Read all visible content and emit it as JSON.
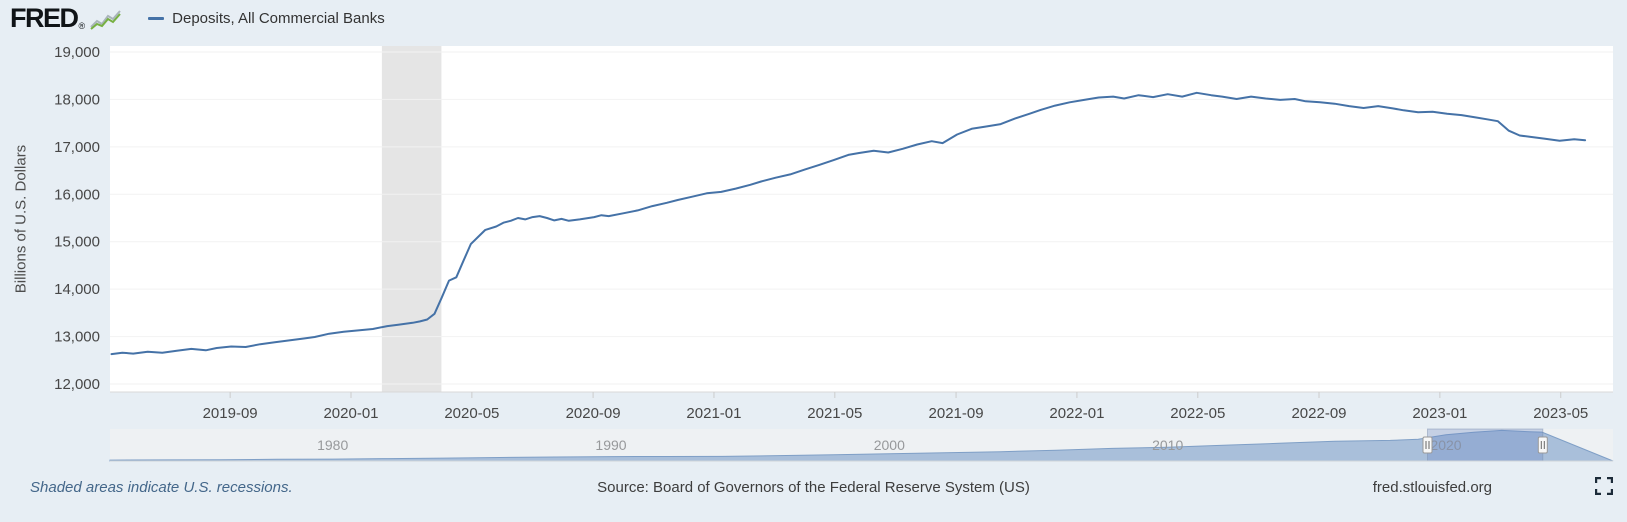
{
  "header": {
    "logo": "FRED",
    "logo_registered": "®",
    "legend": [
      {
        "label": "Deposits, All Commercial Banks",
        "color": "#4572a7"
      }
    ]
  },
  "chart_data": {
    "type": "line",
    "title": "Deposits, All Commercial Banks",
    "ylabel": "Billions of U.S. Dollars",
    "ylim": [
      12000,
      19000
    ],
    "x_domain": [
      2019.336,
      2023.477
    ],
    "grid": true,
    "legend_position": "top-left",
    "y_ticks": [
      {
        "value": 19000,
        "label": "19,000"
      },
      {
        "value": 18000,
        "label": "18,000"
      },
      {
        "value": 17000,
        "label": "17,000"
      },
      {
        "value": 16000,
        "label": "16,000"
      },
      {
        "value": 15000,
        "label": "15,000"
      },
      {
        "value": 14000,
        "label": "14,000"
      },
      {
        "value": 13000,
        "label": "13,000"
      },
      {
        "value": 12000,
        "label": "12,000"
      }
    ],
    "x_ticks": [
      {
        "t": 2019.667,
        "label": "2019-09"
      },
      {
        "t": 2020.0,
        "label": "2020-01"
      },
      {
        "t": 2020.333,
        "label": "2020-05"
      },
      {
        "t": 2020.667,
        "label": "2020-09"
      },
      {
        "t": 2021.0,
        "label": "2021-01"
      },
      {
        "t": 2021.333,
        "label": "2021-05"
      },
      {
        "t": 2021.667,
        "label": "2021-09"
      },
      {
        "t": 2022.0,
        "label": "2022-01"
      },
      {
        "t": 2022.333,
        "label": "2022-05"
      },
      {
        "t": 2022.667,
        "label": "2022-09"
      },
      {
        "t": 2023.0,
        "label": "2023-01"
      },
      {
        "t": 2023.333,
        "label": "2023-05"
      }
    ],
    "recession_bands": [
      [
        2020.085,
        2020.249
      ]
    ],
    "recession_color": "#e5e5e5",
    "series": [
      {
        "name": "Deposits, All Commercial Banks",
        "color": "#4572a7",
        "points": [
          [
            2019.34,
            12630
          ],
          [
            2019.37,
            12660
          ],
          [
            2019.4,
            12640
          ],
          [
            2019.44,
            12680
          ],
          [
            2019.48,
            12660
          ],
          [
            2019.52,
            12700
          ],
          [
            2019.56,
            12740
          ],
          [
            2019.6,
            12710
          ],
          [
            2019.63,
            12760
          ],
          [
            2019.67,
            12790
          ],
          [
            2019.71,
            12780
          ],
          [
            2019.75,
            12840
          ],
          [
            2019.79,
            12880
          ],
          [
            2019.83,
            12920
          ],
          [
            2019.87,
            12960
          ],
          [
            2019.9,
            12990
          ],
          [
            2019.94,
            13060
          ],
          [
            2019.98,
            13100
          ],
          [
            2020.02,
            13130
          ],
          [
            2020.06,
            13160
          ],
          [
            2020.1,
            13220
          ],
          [
            2020.13,
            13250
          ],
          [
            2020.17,
            13290
          ],
          [
            2020.19,
            13320
          ],
          [
            2020.21,
            13360
          ],
          [
            2020.23,
            13480
          ],
          [
            2020.25,
            13820
          ],
          [
            2020.27,
            14180
          ],
          [
            2020.29,
            14250
          ],
          [
            2020.31,
            14600
          ],
          [
            2020.33,
            14950
          ],
          [
            2020.35,
            15100
          ],
          [
            2020.37,
            15250
          ],
          [
            2020.4,
            15320
          ],
          [
            2020.42,
            15400
          ],
          [
            2020.44,
            15440
          ],
          [
            2020.46,
            15500
          ],
          [
            2020.48,
            15470
          ],
          [
            2020.5,
            15520
          ],
          [
            2020.52,
            15540
          ],
          [
            2020.54,
            15500
          ],
          [
            2020.56,
            15450
          ],
          [
            2020.58,
            15480
          ],
          [
            2020.6,
            15440
          ],
          [
            2020.63,
            15470
          ],
          [
            2020.67,
            15520
          ],
          [
            2020.69,
            15560
          ],
          [
            2020.71,
            15540
          ],
          [
            2020.75,
            15600
          ],
          [
            2020.79,
            15660
          ],
          [
            2020.83,
            15750
          ],
          [
            2020.87,
            15820
          ],
          [
            2020.9,
            15880
          ],
          [
            2020.94,
            15950
          ],
          [
            2020.98,
            16020
          ],
          [
            2021.02,
            16050
          ],
          [
            2021.06,
            16120
          ],
          [
            2021.1,
            16200
          ],
          [
            2021.13,
            16270
          ],
          [
            2021.17,
            16350
          ],
          [
            2021.21,
            16420
          ],
          [
            2021.25,
            16520
          ],
          [
            2021.29,
            16620
          ],
          [
            2021.33,
            16720
          ],
          [
            2021.37,
            16830
          ],
          [
            2021.4,
            16870
          ],
          [
            2021.44,
            16920
          ],
          [
            2021.48,
            16880
          ],
          [
            2021.52,
            16960
          ],
          [
            2021.56,
            17050
          ],
          [
            2021.6,
            17120
          ],
          [
            2021.63,
            17080
          ],
          [
            2021.67,
            17260
          ],
          [
            2021.71,
            17380
          ],
          [
            2021.75,
            17430
          ],
          [
            2021.79,
            17480
          ],
          [
            2021.83,
            17600
          ],
          [
            2021.87,
            17700
          ],
          [
            2021.9,
            17780
          ],
          [
            2021.94,
            17870
          ],
          [
            2021.98,
            17940
          ],
          [
            2022.02,
            17990
          ],
          [
            2022.06,
            18040
          ],
          [
            2022.1,
            18060
          ],
          [
            2022.13,
            18020
          ],
          [
            2022.17,
            18090
          ],
          [
            2022.21,
            18050
          ],
          [
            2022.25,
            18110
          ],
          [
            2022.29,
            18060
          ],
          [
            2022.33,
            18140
          ],
          [
            2022.37,
            18090
          ],
          [
            2022.4,
            18060
          ],
          [
            2022.44,
            18010
          ],
          [
            2022.48,
            18060
          ],
          [
            2022.52,
            18020
          ],
          [
            2022.56,
            17990
          ],
          [
            2022.6,
            18010
          ],
          [
            2022.63,
            17960
          ],
          [
            2022.67,
            17940
          ],
          [
            2022.71,
            17910
          ],
          [
            2022.75,
            17860
          ],
          [
            2022.79,
            17820
          ],
          [
            2022.83,
            17860
          ],
          [
            2022.87,
            17810
          ],
          [
            2022.9,
            17770
          ],
          [
            2022.94,
            17730
          ],
          [
            2022.98,
            17740
          ],
          [
            2023.02,
            17700
          ],
          [
            2023.06,
            17670
          ],
          [
            2023.1,
            17620
          ],
          [
            2023.13,
            17580
          ],
          [
            2023.16,
            17540
          ],
          [
            2023.19,
            17340
          ],
          [
            2023.22,
            17240
          ],
          [
            2023.25,
            17210
          ],
          [
            2023.29,
            17170
          ],
          [
            2023.33,
            17130
          ],
          [
            2023.37,
            17160
          ],
          [
            2023.4,
            17140
          ]
        ]
      }
    ]
  },
  "minimap": {
    "x_domain": [
      1972,
      2026
    ],
    "ymax": 19000,
    "decade_ticks": [
      {
        "t": 1980,
        "label": "1980"
      },
      {
        "t": 1990,
        "label": "1990"
      },
      {
        "t": 2000,
        "label": "2000"
      },
      {
        "t": 2010,
        "label": "2010"
      },
      {
        "t": 2020,
        "label": "2020"
      }
    ],
    "selection": [
      2019.336,
      2023.477
    ],
    "track_color": "#eef1f3",
    "area_color": "#a9bfda",
    "area_stroke": "#7f9fc6",
    "selection_fill": "rgba(102,133,194,0.30)",
    "selection_stroke": "rgba(120,140,170,0.45)",
    "points": [
      [
        1972,
        520
      ],
      [
        1974,
        640
      ],
      [
        1976,
        800
      ],
      [
        1978,
        980
      ],
      [
        1980,
        1150
      ],
      [
        1982,
        1420
      ],
      [
        1984,
        1700
      ],
      [
        1986,
        2050
      ],
      [
        1988,
        2350
      ],
      [
        1990,
        2600
      ],
      [
        1992,
        2680
      ],
      [
        1994,
        2750
      ],
      [
        1996,
        3200
      ],
      [
        1998,
        3750
      ],
      [
        2000,
        4250
      ],
      [
        2002,
        4850
      ],
      [
        2004,
        5500
      ],
      [
        2006,
        6400
      ],
      [
        2008,
        7500
      ],
      [
        2010,
        8200
      ],
      [
        2012,
        9300
      ],
      [
        2014,
        10500
      ],
      [
        2016,
        11700
      ],
      [
        2018,
        12250
      ],
      [
        2019,
        12900
      ],
      [
        2020,
        15600
      ],
      [
        2021,
        17100
      ],
      [
        2022,
        18150
      ],
      [
        2023,
        17400
      ],
      [
        2023.45,
        17150
      ]
    ]
  },
  "footer": {
    "note": "Shaded areas indicate U.S. recessions.",
    "source": "Source: Board of Governors of the Federal Reserve System (US)",
    "site": "fred.stlouisfed.org"
  }
}
